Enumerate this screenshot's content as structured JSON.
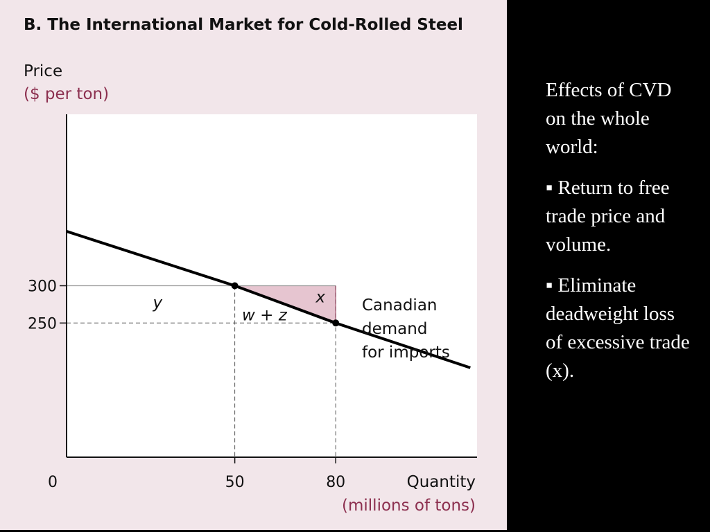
{
  "chart_data": {
    "type": "line",
    "title": "B. The International Market for Cold-Rolled Steel",
    "ylabel": "Price",
    "ylabel_unit": "($ per ton)",
    "xlabel": "Quantity",
    "xlabel_unit": "(millions of tons)",
    "origin_label": "0",
    "x_ticks": [
      50,
      80
    ],
    "y_ticks": [
      250,
      300
    ],
    "xlim": [
      0,
      122
    ],
    "ylim": [
      70,
      530
    ],
    "series": [
      {
        "name": "Canadian demand for imports",
        "x": [
          0,
          50,
          80,
          120
        ],
        "y": [
          373,
          300,
          250,
          190
        ]
      }
    ],
    "points": [
      {
        "x": 50,
        "y": 300
      },
      {
        "x": 80,
        "y": 250
      }
    ],
    "shaded_region": {
      "label": "x",
      "polygon": [
        [
          50,
          300
        ],
        [
          80,
          300
        ],
        [
          80,
          250
        ]
      ]
    },
    "region_labels": {
      "y": "y",
      "w_z": "w + z",
      "x": "x"
    },
    "curve_label": [
      "Canadian",
      "demand",
      "for imports"
    ],
    "colors": {
      "panel": "#f2e6ea",
      "plot": "#ffffff",
      "shade": "#e6c5d0",
      "accent": "#8c2f4f"
    }
  },
  "side_text": {
    "intro": "Effects of CVD on the whole world:",
    "bullet1": "Return to free trade price and volume.",
    "bullet2": "Eliminate deadweight loss of excessive trade (x).",
    "bullet_symbol": "▪"
  }
}
